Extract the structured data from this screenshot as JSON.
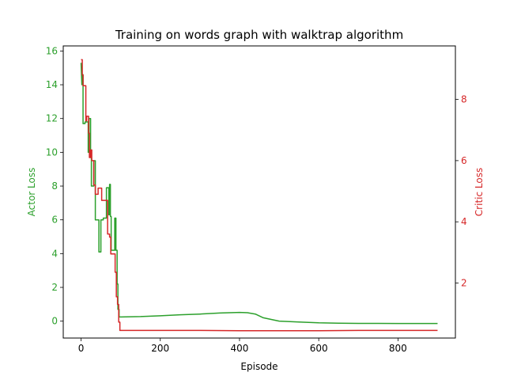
{
  "chart_data": {
    "type": "line",
    "title": "Training on words graph with walktrap algorithm",
    "xlabel": "Episode",
    "ylabel_left": "Actor Loss",
    "ylabel_right": "Critic Loss",
    "xlim": [
      -45,
      945
    ],
    "ylim_left": [
      -1.0,
      16.3
    ],
    "ylim_right": [
      0.2,
      9.75
    ],
    "x_ticks": [
      0,
      200,
      400,
      600,
      800
    ],
    "y_ticks_left": [
      0,
      2,
      4,
      6,
      8,
      10,
      12,
      14,
      16
    ],
    "y_ticks_right": [
      2,
      4,
      6,
      8
    ],
    "grid": false,
    "colors": {
      "actor": "#2ca02c",
      "critic": "#d62728",
      "axis": "#000000"
    },
    "series": [
      {
        "axis": "left",
        "color": "#2ca02c",
        "x": [
          0,
          2,
          2,
          5,
          5,
          10,
          10,
          18,
          18,
          20,
          20,
          24,
          24,
          26,
          26,
          32,
          32,
          36,
          36,
          45,
          45,
          50,
          50,
          56,
          56,
          64,
          64,
          70,
          70,
          72,
          72,
          74,
          74,
          76,
          76,
          85,
          85,
          88,
          88,
          91,
          91,
          93,
          93,
          96,
          96,
          100,
          100,
          150,
          200,
          250,
          300,
          350,
          400,
          420,
          440,
          460,
          500,
          550,
          600,
          650,
          700,
          750,
          800,
          850,
          900
        ],
        "y": [
          15.3,
          14.0,
          14.6,
          14.6,
          11.7,
          11.7,
          11.8,
          11.8,
          10.0,
          10.0,
          12.0,
          12.0,
          10.0,
          10.0,
          8.0,
          8.0,
          9.5,
          9.5,
          6.0,
          6.0,
          4.1,
          4.1,
          6.0,
          6.0,
          6.1,
          6.1,
          7.9,
          7.9,
          6.3,
          6.3,
          8.1,
          8.1,
          6.2,
          6.2,
          4.2,
          4.2,
          6.1,
          6.1,
          4.2,
          4.2,
          2.2,
          2.2,
          0.7,
          0.7,
          0.25,
          0.25,
          0.25,
          0.27,
          0.32,
          0.38,
          0.42,
          0.48,
          0.52,
          0.5,
          0.42,
          0.2,
          0.0,
          -0.05,
          -0.1,
          -0.12,
          -0.13,
          -0.13,
          -0.14,
          -0.14,
          -0.14
        ]
      },
      {
        "axis": "right",
        "color": "#d62728",
        "x": [
          0,
          3,
          3,
          5,
          5,
          12,
          12,
          14,
          14,
          19,
          19,
          21,
          21,
          24,
          24,
          27,
          27,
          32,
          32,
          36,
          36,
          38,
          38,
          43,
          43,
          52,
          52,
          60,
          60,
          67,
          67,
          72,
          72,
          75,
          75,
          80,
          80,
          86,
          86,
          89,
          89,
          92,
          92,
          95,
          95,
          98,
          98,
          200,
          300,
          400,
          500,
          600,
          700,
          800,
          900
        ],
        "y": [
          9.3,
          9.3,
          8.8,
          8.8,
          8.45,
          8.45,
          7.3,
          7.3,
          7.45,
          7.45,
          6.9,
          6.9,
          6.1,
          6.1,
          6.35,
          6.35,
          6.0,
          6.0,
          5.2,
          5.2,
          4.9,
          4.9,
          4.9,
          4.9,
          5.1,
          5.1,
          4.7,
          4.7,
          4.7,
          4.7,
          3.6,
          3.6,
          3.5,
          3.5,
          2.95,
          2.95,
          2.95,
          2.95,
          2.35,
          2.35,
          1.55,
          1.55,
          1.3,
          1.3,
          0.72,
          0.72,
          0.45,
          0.45,
          0.45,
          0.44,
          0.44,
          0.44,
          0.45,
          0.45,
          0.45
        ]
      }
    ]
  }
}
